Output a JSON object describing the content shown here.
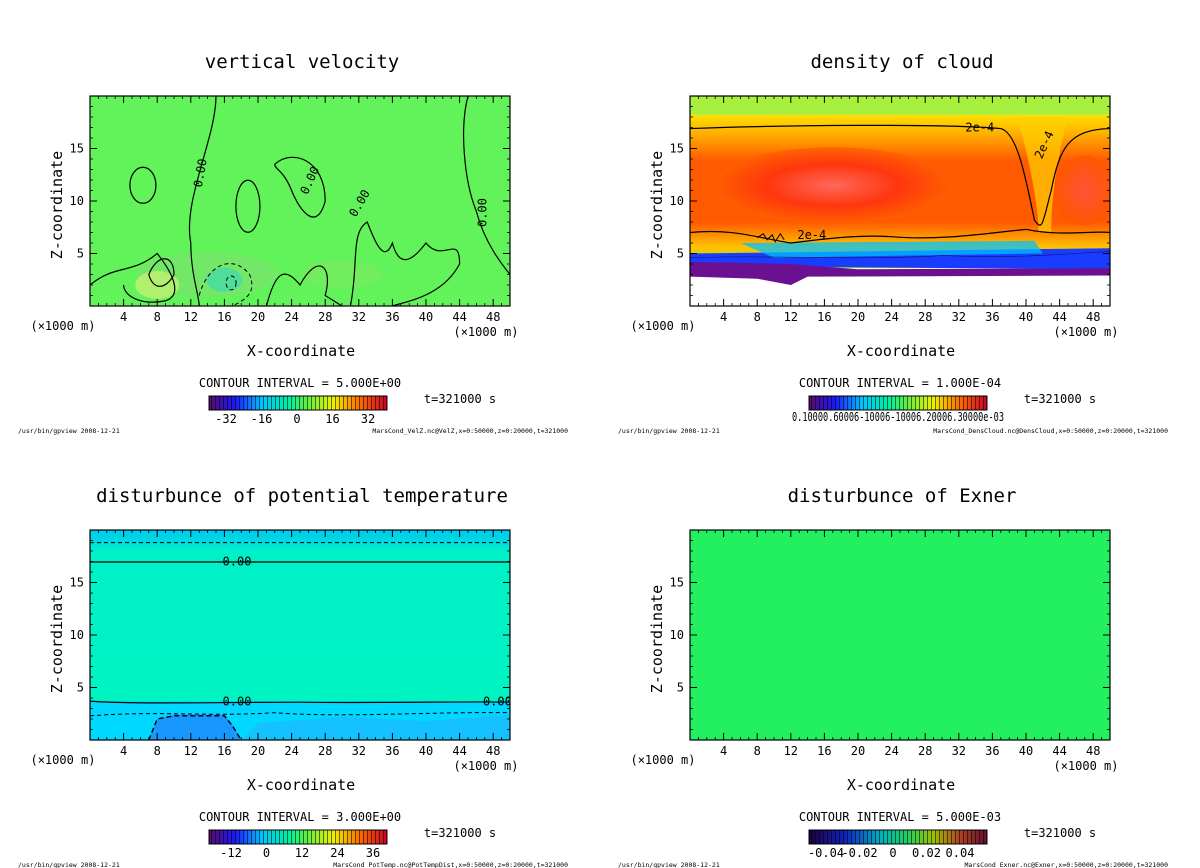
{
  "chart_data": [
    {
      "type": "heatmap",
      "title": "vertical velocity",
      "xlabel": "X-coordinate",
      "ylabel": "Z-coordinate",
      "x_unit": "(×1000 m)",
      "xlim": [
        0,
        50
      ],
      "ylim": [
        0,
        20
      ],
      "x_ticks": [
        4,
        8,
        12,
        16,
        20,
        24,
        28,
        32,
        36,
        40,
        44,
        48
      ],
      "y_ticks": [
        5,
        10,
        15
      ],
      "contour_interval": "CONTOUR INTERVAL = 5.000E+00",
      "time": "t=321000 s",
      "colorbar_ticks": [
        "-32",
        "-16",
        "0",
        "16",
        "32"
      ],
      "contour_labels": [
        "0.00",
        "0.00",
        "0.00",
        "0.00"
      ],
      "footer_left": "/usr/bin/gpview  2008-12-21",
      "footer_right": "MarsCond_VelZ.nc@VelZ,x=0:50000,z=0:20000,t=321000",
      "background_color": "#62f25a"
    },
    {
      "type": "heatmap",
      "title": "density of cloud",
      "xlabel": "X-coordinate",
      "ylabel": "Z-coordinate",
      "x_unit": "(×1000 m)",
      "xlim": [
        0,
        50
      ],
      "ylim": [
        0,
        20
      ],
      "x_ticks": [
        4,
        8,
        12,
        16,
        20,
        24,
        28,
        32,
        36,
        40,
        44,
        48
      ],
      "y_ticks": [
        5,
        10,
        15
      ],
      "contour_interval": "CONTOUR INTERVAL = 1.000E-04",
      "time": "t=321000 s",
      "colorbar_ticks": [
        "0.10000.60006-10006-10006.20006.30000e-03"
      ],
      "contour_labels": [
        "2e-4",
        "2e-4",
        "2e-4"
      ],
      "footer_left": "/usr/bin/gpview  2008-12-21",
      "footer_right": "MarsCond_DensCloud.nc@DensCloud,x=0:50000,z=0:20000,t=321000",
      "background_color": "#ffffff"
    },
    {
      "type": "heatmap",
      "title": "disturbunce of potential temperature",
      "xlabel": "X-coordinate",
      "ylabel": "Z-coordinate",
      "x_unit": "(×1000 m)",
      "xlim": [
        0,
        50
      ],
      "ylim": [
        0,
        20
      ],
      "x_ticks": [
        4,
        8,
        12,
        16,
        20,
        24,
        28,
        32,
        36,
        40,
        44,
        48
      ],
      "y_ticks": [
        5,
        10,
        15
      ],
      "contour_interval": "CONTOUR INTERVAL = 3.000E+00",
      "time": "t=321000 s",
      "colorbar_ticks": [
        "-12",
        "0",
        "12",
        "24",
        "36"
      ],
      "contour_labels": [
        "0.00",
        "0.00",
        "0.00"
      ],
      "footer_left": "/usr/bin/gpview  2008-12-21",
      "footer_right": "MarsCond_PotTemp.nc@PotTempDist,x=0:50000,z=0:20000,t=321000",
      "background_color": "#00f5c0"
    },
    {
      "type": "heatmap",
      "title": "disturbunce of Exner",
      "xlabel": "X-coordinate",
      "ylabel": "Z-coordinate",
      "x_unit": "(×1000 m)",
      "xlim": [
        0,
        50
      ],
      "ylim": [
        0,
        20
      ],
      "x_ticks": [
        4,
        8,
        12,
        16,
        20,
        24,
        28,
        32,
        36,
        40,
        44,
        48
      ],
      "y_ticks": [
        5,
        10,
        15
      ],
      "contour_interval": "CONTOUR INTERVAL = 5.000E-03",
      "time": "t=321000 s",
      "colorbar_ticks": [
        "-0.04",
        "-0.02",
        "0",
        "0.02",
        "0.04"
      ],
      "contour_labels": [],
      "footer_left": "/usr/bin/gpview  2008-12-21",
      "footer_right": "MarsCond_Exner.nc@Exner,x=0:50000,z=0:20000,t=321000",
      "background_color": "#22f060"
    }
  ]
}
